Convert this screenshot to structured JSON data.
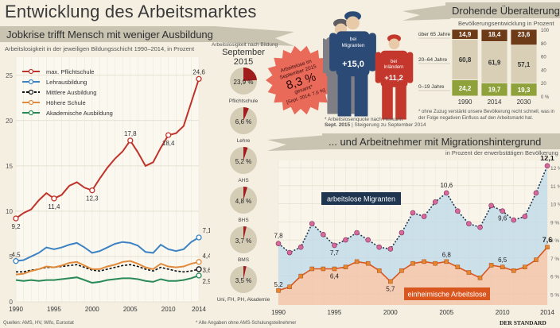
{
  "header": {
    "title": "Entwicklung des Arbeitsmarktes",
    "section_left": "Jobkrise trifft Mensch mit weniger Ausbildung ...",
    "section_right_top": "Drohende Überalterung",
    "section_right_bottom": "... und Arbeitnehmer mit Migrationshintergrund",
    "left_chart_caption": "Arbeitslosigkeit in der jeweiligen Bildungsschicht 1990–2014, in Prozent",
    "pie_caption_1": "Arbeitslosigkeit nach Bildung",
    "pie_caption_2": "September 2015",
    "demo_caption": "Bevölkerungsentwicklung in Prozent",
    "migr_caption": "in Prozent der erwerbstätigen Bevölkerung",
    "migr_note": "* Arbeitslosenquote nach Herkunft",
    "migr_note_bold": "Sept. 2015",
    "migr_note_rest": "| Steigerung zu September 2014",
    "demo_note": "* ohne Zuzug verstärkt unsere Bevölkerung recht schnell, was in der Folge negativen Einfluss auf den Arbeitsmarkt hat.",
    "sources": "Quellen: AMS, HV, Wifo, Eurostat",
    "footnote": "* Alle Angaben ohne AMS-Schulungsteilnehmer",
    "brand": "DER STANDARD"
  },
  "starburst": {
    "line1": "Arbeitslose im",
    "line2": "September 2015",
    "value": "8,3 %",
    "line3": "gesamt*",
    "line4": "[Sept. 2014: 7,6 %]"
  },
  "workers": {
    "migrants_label1": "bei",
    "migrants_label2": "Migranten",
    "migrants_value": "+15,0",
    "natives_label1": "bei",
    "natives_label2": "Inländern",
    "natives_value": "+11,2"
  },
  "colors": {
    "pflicht": "#c0332b",
    "lehre": "#3d83c4",
    "mittlere": "#111111",
    "hoehere": "#e08a3c",
    "akademisch": "#2a8a57",
    "migranten": "#1f3550",
    "einheimisch": "#d9561f",
    "pie": "#a11c1c",
    "ribbon": "#c9c3b2"
  },
  "chart_data": [
    {
      "type": "line",
      "title": "Arbeitslosigkeit in der jeweiligen Bildungsschicht 1990–2014, in Prozent",
      "x": [
        1990,
        1991,
        1992,
        1993,
        1994,
        1995,
        1996,
        1997,
        1998,
        1999,
        2000,
        2001,
        2002,
        2003,
        2004,
        2005,
        2006,
        2007,
        2008,
        2009,
        2010,
        2011,
        2012,
        2013,
        2014
      ],
      "xticks": [
        1990,
        1995,
        2000,
        2005,
        2010,
        2014
      ],
      "yticks": [
        0,
        5,
        10,
        15,
        20,
        25
      ],
      "ylim": [
        0,
        27
      ],
      "series": [
        {
          "name": "max. Pflichtschule",
          "values": [
            9.2,
            9.8,
            10.2,
            11.2,
            12.0,
            11.4,
            11.8,
            12.8,
            13.2,
            12.6,
            12.3,
            13.6,
            14.8,
            15.8,
            16.6,
            17.8,
            16.5,
            15.0,
            15.4,
            17.0,
            18.4,
            18.6,
            19.4,
            22.0,
            24.6
          ]
        },
        {
          "name": "Lehrausbildung",
          "values": [
            4.5,
            4.6,
            5.0,
            5.4,
            6.0,
            5.8,
            6.0,
            6.3,
            6.5,
            6.0,
            5.4,
            5.6,
            6.0,
            6.4,
            6.6,
            6.5,
            6.2,
            5.5,
            5.4,
            6.3,
            5.8,
            5.6,
            5.8,
            6.6,
            7.1
          ]
        },
        {
          "name": "Mittlere Ausbildung",
          "values": [
            3.3,
            3.3,
            3.5,
            3.6,
            3.8,
            3.8,
            3.9,
            4.0,
            4.1,
            3.8,
            3.5,
            3.4,
            3.6,
            3.8,
            4.0,
            4.1,
            3.9,
            3.6,
            3.4,
            3.8,
            3.6,
            3.4,
            3.3,
            3.4,
            3.6
          ]
        },
        {
          "name": "Höhere Schule",
          "values": [
            3.0,
            3.1,
            3.4,
            3.6,
            3.9,
            3.8,
            4.0,
            4.3,
            4.4,
            4.0,
            3.6,
            3.6,
            3.9,
            4.1,
            4.4,
            4.5,
            4.2,
            3.8,
            3.6,
            4.2,
            3.9,
            3.8,
            3.9,
            4.2,
            4.4
          ]
        },
        {
          "name": "Akademische Ausbildung",
          "values": [
            2.4,
            2.3,
            2.4,
            2.3,
            2.4,
            2.4,
            2.5,
            2.6,
            2.7,
            2.4,
            2.1,
            2.2,
            2.4,
            2.5,
            2.6,
            2.6,
            2.5,
            2.3,
            2.2,
            2.5,
            2.3,
            2.3,
            2.4,
            2.6,
            2.9
          ]
        }
      ],
      "data_labels": [
        {
          "series": 0,
          "x": 1990,
          "text": "9,2"
        },
        {
          "series": 0,
          "x": 1995,
          "text": "11,4"
        },
        {
          "series": 0,
          "x": 2000,
          "text": "12,3"
        },
        {
          "series": 0,
          "x": 2005,
          "text": "17,8"
        },
        {
          "series": 0,
          "x": 2010,
          "text": "18,4"
        },
        {
          "series": 0,
          "x": 2014,
          "text": "24,6"
        },
        {
          "series": 1,
          "x": 1990,
          "text": "4,5"
        },
        {
          "series": 1,
          "x": 2014,
          "text": "7,1"
        },
        {
          "series": 3,
          "x": 2014,
          "text": "4,4"
        },
        {
          "series": 2,
          "x": 2014,
          "text": "3,6"
        },
        {
          "series": 4,
          "x": 2014,
          "text": "2,9"
        }
      ]
    },
    {
      "type": "pie",
      "title": "Arbeitslosigkeit nach Bildung September 2015",
      "items": [
        {
          "label": "Pflichtschule",
          "value": 23.9,
          "text": "23,9 %"
        },
        {
          "label": "Lehre",
          "value": 6.6,
          "text": "6,6 %"
        },
        {
          "label": "AHS",
          "value": 5.2,
          "text": "5,2 %"
        },
        {
          "label": "BHS",
          "value": 4.8,
          "text": "4,8 %"
        },
        {
          "label": "BMS",
          "value": 3.7,
          "text": "3,7 %"
        },
        {
          "label": "Uni, FH, PH, Akademie",
          "value": 3.5,
          "text": "3,5 %"
        }
      ]
    },
    {
      "type": "table",
      "title": "Bevölkerungsentwicklung in Prozent",
      "columns": [
        "1990",
        "2014",
        "2030"
      ],
      "rows": [
        {
          "label": "über 65 Jahre",
          "values": [
            14.9,
            18.4,
            23.6
          ],
          "texts": [
            "14,9",
            "18,4",
            "23,6"
          ]
        },
        {
          "label": "20–64 Jahre",
          "values": [
            60.8,
            61.9,
            57.1
          ],
          "texts": [
            "60,8",
            "61,9",
            "57,1"
          ]
        },
        {
          "label": "0–19 Jahre",
          "values": [
            24.2,
            19.7,
            19.3
          ],
          "texts": [
            "24,2",
            "19,7",
            "19,3"
          ]
        }
      ],
      "yticks": [
        "100",
        "80",
        "60",
        "40",
        "20",
        "0 %"
      ]
    },
    {
      "type": "line",
      "title": "in Prozent der erwerbstätigen Bevölkerung",
      "x": [
        1990,
        1991,
        1992,
        1993,
        1994,
        1995,
        1996,
        1997,
        1998,
        1999,
        2000,
        2001,
        2002,
        2003,
        2004,
        2005,
        2006,
        2007,
        2008,
        2009,
        2010,
        2011,
        2012,
        2013,
        2014
      ],
      "xticks": [
        1990,
        1995,
        2000,
        2005,
        2010,
        2014
      ],
      "yticks": [
        "5 %",
        "6 %",
        "7 %",
        "8 %",
        "9 %",
        "10 %",
        "11 %",
        "12 %"
      ],
      "ylim": [
        4.4,
        12.4
      ],
      "series": [
        {
          "name": "arbeitslose Migranten",
          "values": [
            7.8,
            7.3,
            7.6,
            8.9,
            8.3,
            7.7,
            8.0,
            8.4,
            8.0,
            7.6,
            7.5,
            8.4,
            9.5,
            9.3,
            10.1,
            10.6,
            9.6,
            8.9,
            8.7,
            9.9,
            9.6,
            9.1,
            9.3,
            10.6,
            12.1
          ]
        },
        {
          "name": "einheimische Arbeitslose",
          "values": [
            5.2,
            5.4,
            6.0,
            6.4,
            6.4,
            6.4,
            6.5,
            6.8,
            6.7,
            6.3,
            5.7,
            6.3,
            6.7,
            6.8,
            6.7,
            6.8,
            6.5,
            6.2,
            5.9,
            6.6,
            6.5,
            6.3,
            6.5,
            6.9,
            7.6
          ]
        }
      ],
      "data_labels": [
        {
          "series": 0,
          "x": 1990,
          "text": "7,8"
        },
        {
          "series": 0,
          "x": 1995,
          "text": "7,7"
        },
        {
          "series": 0,
          "x": 2005,
          "text": "10,6"
        },
        {
          "series": 0,
          "x": 2010,
          "text": "9,6"
        },
        {
          "series": 0,
          "x": 2014,
          "text": "12,1"
        },
        {
          "series": 1,
          "x": 1990,
          "text": "5,2"
        },
        {
          "series": 1,
          "x": 1995,
          "text": "6,4"
        },
        {
          "series": 1,
          "x": 2000,
          "text": "5,7"
        },
        {
          "series": 1,
          "x": 2005,
          "text": "6,8"
        },
        {
          "series": 1,
          "x": 2010,
          "text": "6,5"
        },
        {
          "series": 1,
          "x": 2014,
          "text": "7,6"
        }
      ]
    }
  ]
}
